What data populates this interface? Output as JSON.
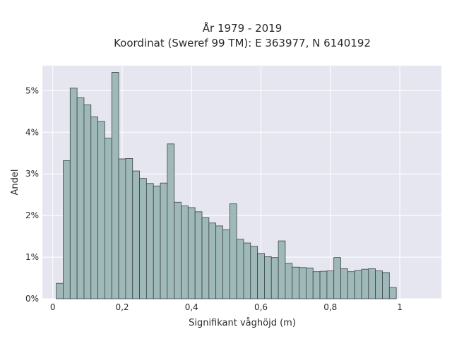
{
  "chart_data": {
    "type": "bar",
    "title_line1": "År 1979 - 2019",
    "title_line2": "Koordinat (Sweref 99 TM): E 363977, N 6140192",
    "xlabel": "Signifikant våghöjd (m)",
    "ylabel": "Andel",
    "bin_width": 0.02,
    "x_start": 0.01,
    "xlim": [
      -0.03,
      1.12
    ],
    "ylim": [
      0,
      0.056
    ],
    "x_ticks": [
      0,
      0.2,
      0.4,
      0.6,
      0.8,
      1.0
    ],
    "x_tick_labels": [
      "0",
      "0,2",
      "0,4",
      "0,6",
      "0,8",
      "1"
    ],
    "y_ticks": [
      0,
      0.01,
      0.02,
      0.03,
      0.04,
      0.05
    ],
    "y_tick_labels": [
      "0%",
      "1%",
      "2%",
      "3%",
      "4%",
      "5%"
    ],
    "grid": true,
    "colors": {
      "bar_fill": "#9fb9b8",
      "bar_stroke": "#3a4444",
      "plot_bg": "#e6e6f0",
      "grid": "#ffffff"
    },
    "values": [
      0.0037,
      0.0332,
      0.0506,
      0.0483,
      0.0466,
      0.0437,
      0.0426,
      0.0386,
      0.0544,
      0.0336,
      0.0337,
      0.0307,
      0.0289,
      0.0277,
      0.0271,
      0.0278,
      0.0372,
      0.0232,
      0.0223,
      0.0219,
      0.0209,
      0.0195,
      0.0182,
      0.0175,
      0.0166,
      0.0228,
      0.0143,
      0.0134,
      0.0126,
      0.0109,
      0.0101,
      0.0099,
      0.0139,
      0.0085,
      0.0076,
      0.0075,
      0.0074,
      0.0065,
      0.0066,
      0.0067,
      0.0099,
      0.0072,
      0.0065,
      0.0068,
      0.0071,
      0.0072,
      0.0067,
      0.0063,
      0.0027
    ]
  }
}
